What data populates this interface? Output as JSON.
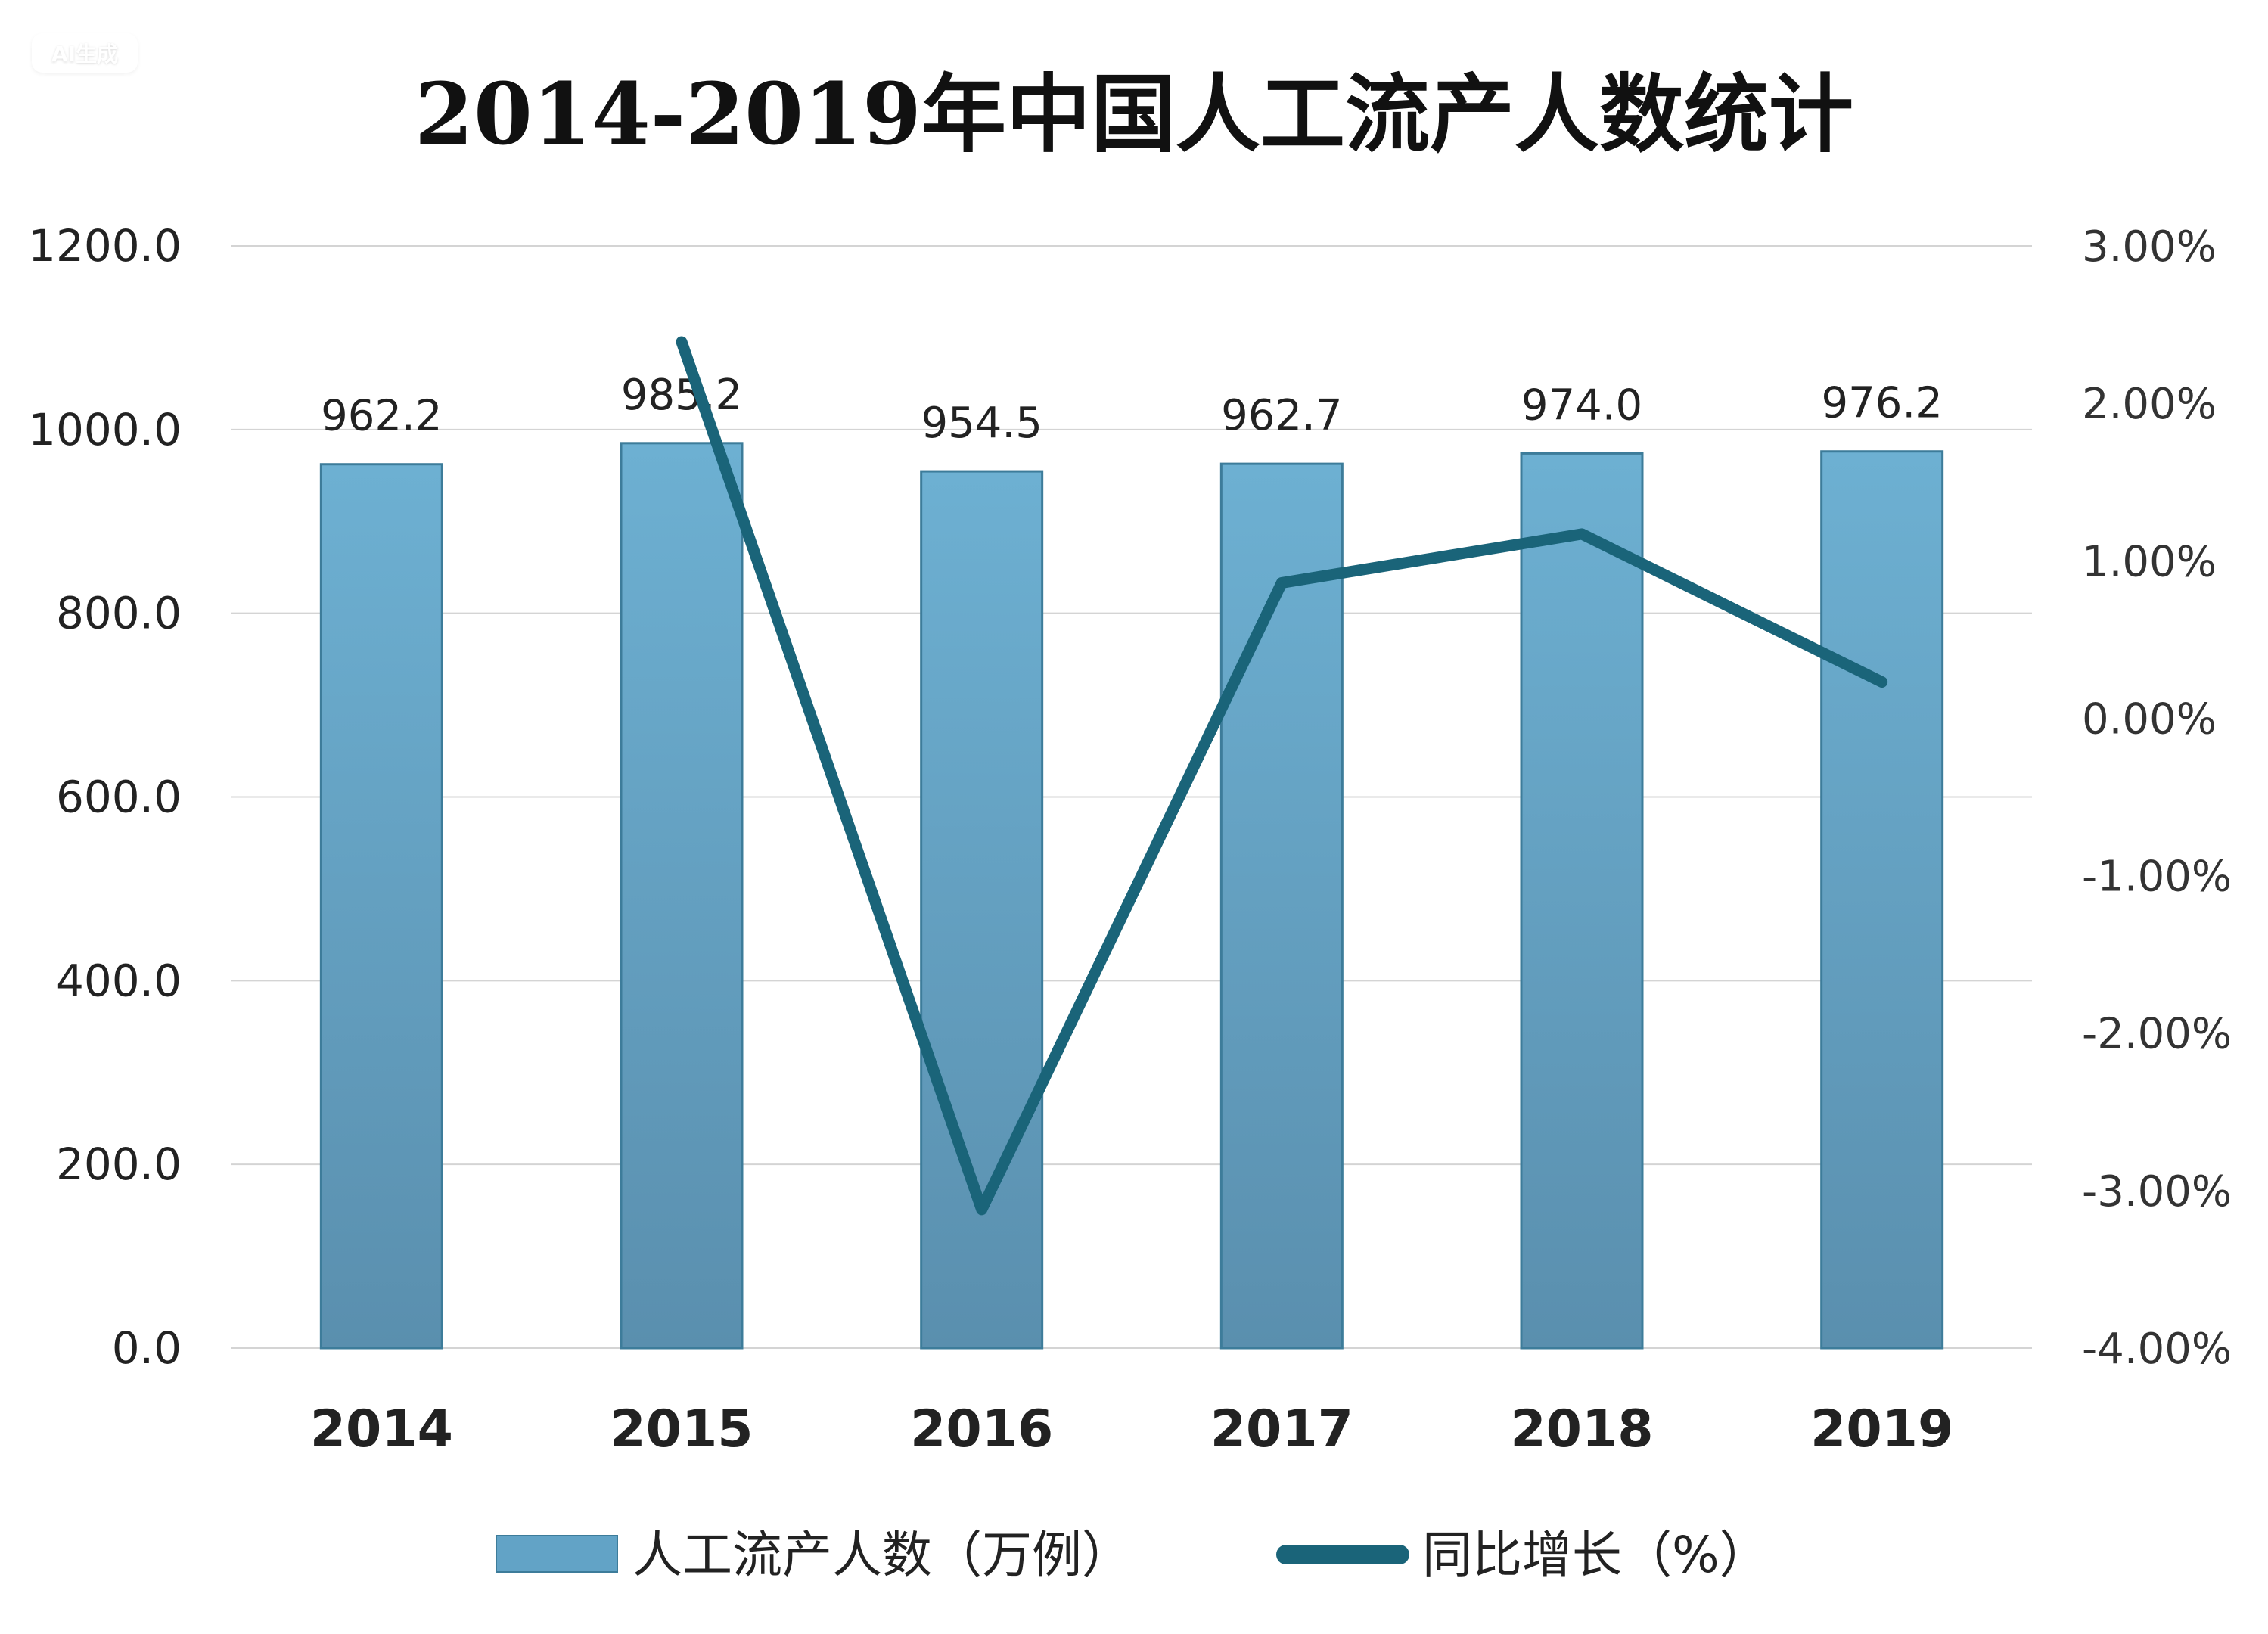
{
  "watermark": "AI生成",
  "chart_data": {
    "type": "bar+line",
    "title": "2014-2019年中国人工流产人数统计",
    "categories": [
      "2014",
      "2015",
      "2016",
      "2017",
      "2018",
      "2019"
    ],
    "series": [
      {
        "name": "人工流产人数（万例）",
        "type": "bar",
        "axis": "left",
        "values": [
          962.2,
          985.2,
          954.5,
          962.7,
          974.0,
          976.2
        ],
        "labels": [
          "962.2",
          "985.2",
          "954.5",
          "962.7",
          "974.0",
          "976.2"
        ],
        "color": "#62a3c6"
      },
      {
        "name": "同比增长（%）",
        "type": "line",
        "axis": "right",
        "values": [
          null,
          2.39,
          -3.12,
          0.86,
          1.17,
          0.23
        ],
        "color": "#1a6479"
      }
    ],
    "left_axis": {
      "ylim": [
        0,
        1200
      ],
      "ticks": [
        "0.0",
        "200.0",
        "400.0",
        "600.0",
        "800.0",
        "1000.0",
        "1200.0"
      ]
    },
    "right_axis": {
      "ylim": [
        -4,
        3
      ],
      "ticks": [
        "-4.00%",
        "-3.00%",
        "-2.00%",
        "-1.00%",
        "0.00%",
        "1.00%",
        "2.00%",
        "3.00%"
      ]
    },
    "grid": true,
    "legend": "bottom"
  }
}
